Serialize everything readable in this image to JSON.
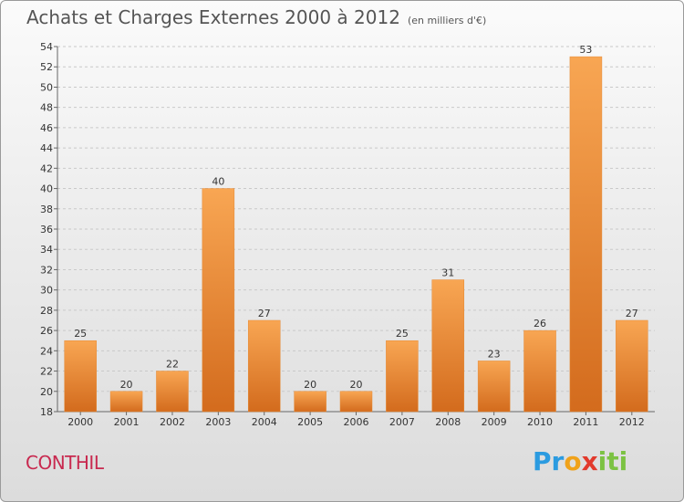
{
  "title": "Achats et Charges Externes 2000 à 2012",
  "subtitle": "(en milliers d'€)",
  "commune": "CONTHIL",
  "logo": {
    "p1": "Pr",
    "p2": "o",
    "p3": "x",
    "p4": "iti"
  },
  "colors": {
    "bar_light": "#f7a24e",
    "bar_dark": "#d9701f",
    "commune": "#c8294f"
  },
  "chart_data": {
    "type": "bar",
    "categories": [
      "2000",
      "2001",
      "2002",
      "2003",
      "2004",
      "2005",
      "2006",
      "2007",
      "2008",
      "2009",
      "2010",
      "2011",
      "2012"
    ],
    "values": [
      25,
      20,
      22,
      40,
      27,
      20,
      20,
      25,
      31,
      23,
      26,
      53,
      27
    ],
    "ylim": [
      18,
      54
    ],
    "yticks": [
      18,
      20,
      22,
      24,
      26,
      28,
      30,
      32,
      34,
      36,
      38,
      40,
      42,
      44,
      46,
      48,
      50,
      52,
      54
    ],
    "grid": true
  }
}
